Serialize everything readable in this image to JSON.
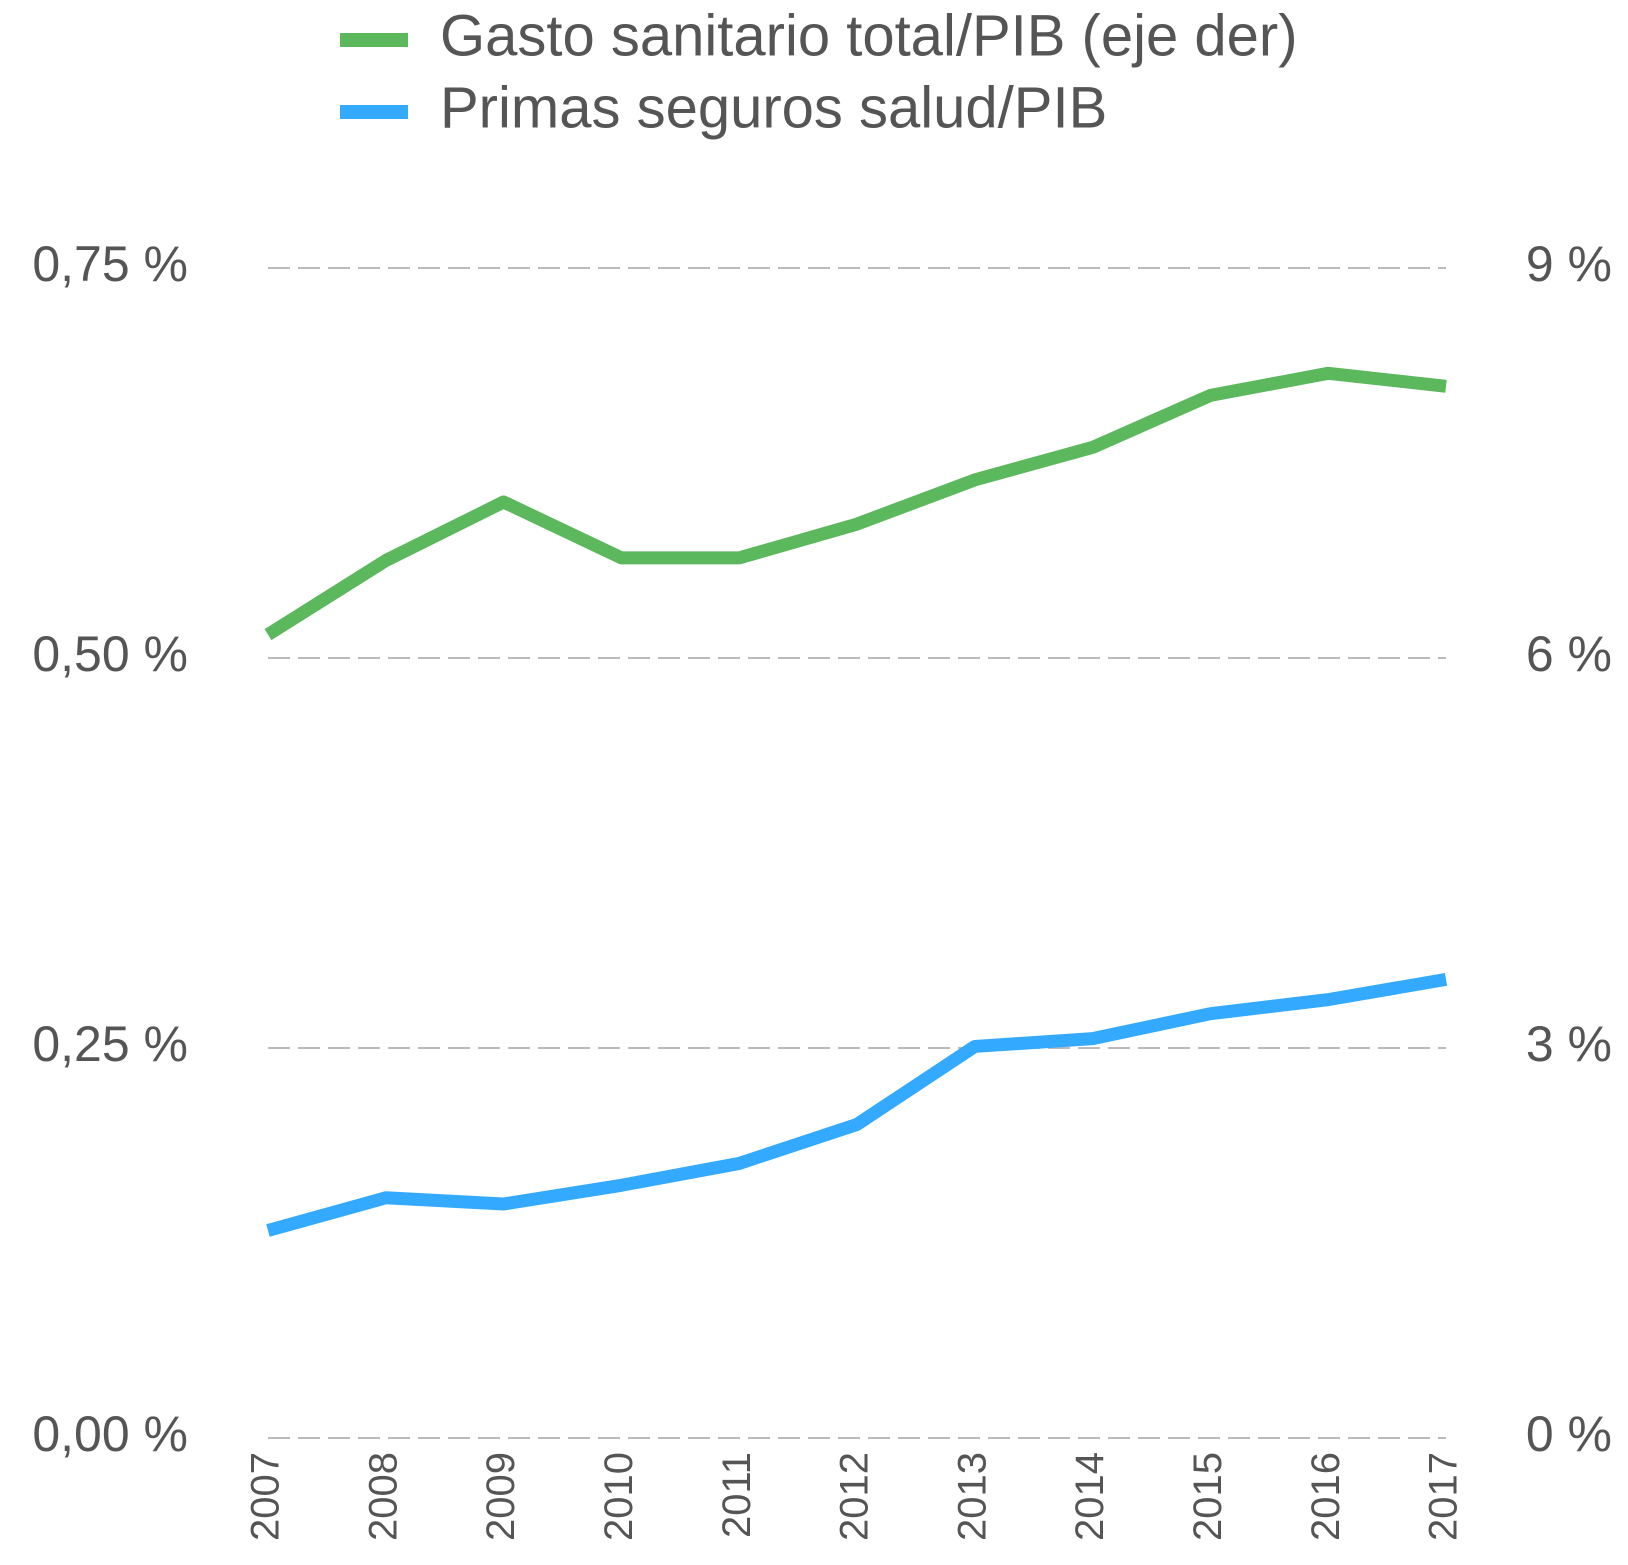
{
  "chart_data": {
    "type": "line",
    "categories": [
      "2007",
      "2008",
      "2009",
      "2010",
      "2011",
      "2012",
      "2013",
      "2014",
      "2015",
      "2016",
      "2017"
    ],
    "series": [
      {
        "name": "Gasto sanitario total/PIB (eje der)",
        "color": "#5cb85c",
        "axis": "y2",
        "values": [
          6.18,
          6.75,
          7.2,
          6.77,
          6.77,
          7.03,
          7.37,
          7.62,
          8.02,
          8.19,
          8.09
        ]
      },
      {
        "name": "Primas seguros salud/PIB",
        "color": "#33aaff",
        "values": [
          0.133,
          0.154,
          0.15,
          0.162,
          0.176,
          0.201,
          0.251,
          0.256,
          0.272,
          0.281,
          0.294
        ]
      }
    ],
    "ylim": [
      0,
      0.75
    ],
    "yticks": [
      {
        "value": 0,
        "label": "0,00 %"
      },
      {
        "value": 0.25,
        "label": "0,25 %"
      },
      {
        "value": 0.5,
        "label": "0,50 %"
      },
      {
        "value": 0.75,
        "label": "0,75 %"
      }
    ],
    "y2lim": [
      0,
      9
    ],
    "y2ticks": [
      {
        "value": 0,
        "label": "0 %"
      },
      {
        "value": 3,
        "label": "3 %"
      },
      {
        "value": 6,
        "label": "6 %"
      },
      {
        "value": 9,
        "label": "9 %"
      }
    ],
    "grid": true
  }
}
